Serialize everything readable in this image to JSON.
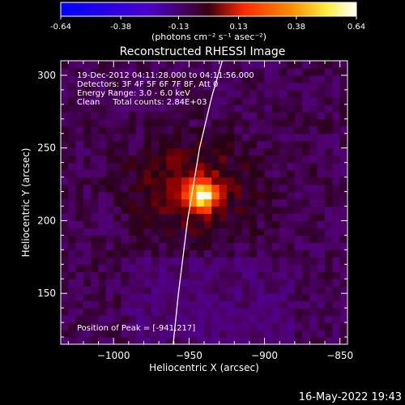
{
  "colorbar": {
    "tick_labels": [
      "-0.64",
      "-0.38",
      "-0.13",
      "0.13",
      "0.38",
      "0.64"
    ],
    "range": [
      -0.64,
      0.64
    ],
    "unit_label": "(photons cm⁻² s⁻¹ asec⁻²)",
    "colors": [
      "#0000ff",
      "#4b00c8",
      "#ff2a00",
      "#ff8c00",
      "#ffee40",
      "#ffffff"
    ]
  },
  "chart_data": {
    "type": "heatmap",
    "title": "Reconstructed RHESSI Image",
    "xlabel": "Heliocentric X (arcsec)",
    "ylabel": "Heliocentric Y (arcsec)",
    "xlim": [
      -1035,
      -845
    ],
    "ylim": [
      115,
      310
    ],
    "x_ticks": [
      -1000,
      -950,
      -900,
      -850
    ],
    "y_ticks": [
      150,
      200,
      250,
      300
    ],
    "x_tick_labels": [
      "−1000",
      "−950",
      "−900",
      "−850"
    ],
    "y_tick_labels": [
      "150",
      "200",
      "250",
      "300"
    ],
    "peak": {
      "x": -941,
      "y": 217,
      "value": 0.64
    },
    "emission_region": {
      "x_range": [
        -995,
        -900
      ],
      "y_range": [
        185,
        260
      ]
    },
    "limb_curve": {
      "x": [
        -960.5,
        -957,
        -951,
        -943,
        -935,
        -928
      ],
      "y": [
        115,
        150,
        200,
        250,
        285,
        310
      ]
    },
    "annotations": [
      "19-Dec-2012 04:11:28.000 to 04:11:56.000",
      "Detectors: 3F 4F 5F 6F 7F 8F, Att 0",
      "Energy Range: 3.0 - 6.0 keV",
      "Clean     Total counts: 2.84E+03"
    ],
    "peak_label": "Position of Peak = [-941,217]"
  },
  "footer": {
    "timestamp": "16-May-2022 19:43"
  }
}
